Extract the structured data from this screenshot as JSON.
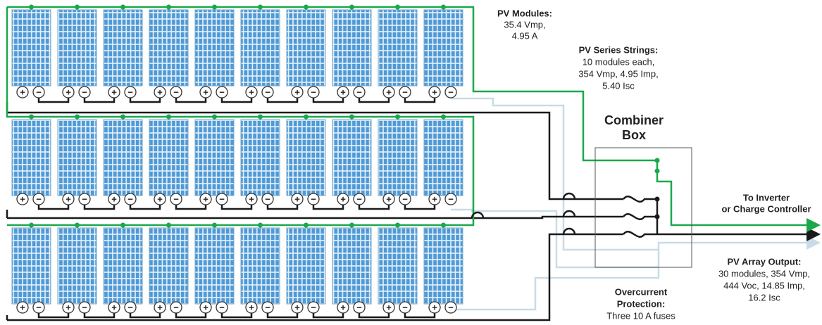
{
  "labels": {
    "pv_modules": {
      "heading": "PV Modules:",
      "lines": [
        "35.4 Vmp,",
        "4.95 A"
      ]
    },
    "pv_series_strings": {
      "heading": "PV Series Strings:",
      "lines": [
        "10 modules each,",
        "354 Vmp, 4.95 Imp,",
        "5.40 Isc"
      ]
    },
    "combiner_box": {
      "lines": [
        "Combiner",
        "Box"
      ]
    },
    "to_inverter": {
      "lines": [
        "To Inverter",
        "or Charge Controller"
      ]
    },
    "pv_array_output": {
      "heading": "PV Array Output:",
      "lines": [
        "30 modules, 354 Vmp,",
        "444 Voc, 14.85 Imp,",
        "16.2 Isc"
      ]
    },
    "overcurrent": {
      "lines": [
        "Overcurrent",
        "Protection:",
        "Three 10 A fuses"
      ]
    }
  },
  "module_terminals": {
    "positive": "+",
    "negative": "−"
  }
}
